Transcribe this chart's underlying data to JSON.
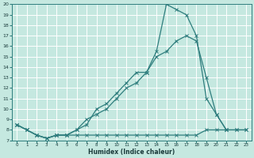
{
  "xlabel": "Humidex (Indice chaleur)",
  "bg_color": "#c5e8e0",
  "grid_color": "#ffffff",
  "line_color": "#2e7d7d",
  "xlim": [
    -0.5,
    23.5
  ],
  "ylim": [
    7,
    20
  ],
  "xticks": [
    0,
    1,
    2,
    3,
    4,
    5,
    6,
    7,
    8,
    9,
    10,
    11,
    12,
    13,
    14,
    15,
    16,
    17,
    18,
    19,
    20,
    21,
    22,
    23
  ],
  "yticks": [
    7,
    8,
    9,
    10,
    11,
    12,
    13,
    14,
    15,
    16,
    17,
    18,
    19,
    20
  ],
  "line1_x": [
    0,
    1,
    2,
    3,
    4,
    5,
    6,
    7,
    8,
    9,
    10,
    11,
    12,
    13,
    14,
    15,
    16,
    17,
    18,
    19,
    20,
    21
  ],
  "line1_y": [
    8.5,
    8.0,
    7.5,
    7.2,
    7.5,
    7.5,
    8.0,
    8.5,
    10.0,
    10.5,
    11.5,
    12.5,
    13.5,
    13.5,
    15.5,
    20.0,
    19.5,
    19.0,
    17.0,
    11.0,
    9.5,
    8.0
  ],
  "line2_x": [
    0,
    1,
    2,
    3,
    4,
    5,
    6,
    7,
    8,
    9,
    10,
    11,
    12,
    13,
    14,
    15,
    16,
    17,
    18,
    19,
    20,
    21,
    22,
    23
  ],
  "line2_y": [
    8.5,
    8.0,
    7.5,
    7.2,
    7.5,
    7.5,
    8.0,
    9.0,
    9.5,
    10.0,
    11.0,
    12.0,
    12.5,
    13.5,
    15.0,
    15.5,
    16.5,
    17.0,
    16.5,
    13.0,
    9.5,
    8.0,
    8.0,
    8.0
  ],
  "line3_x": [
    0,
    1,
    2,
    3,
    4,
    5,
    6,
    7,
    8,
    9,
    10,
    11,
    12,
    13,
    14,
    15,
    16,
    17,
    18,
    19,
    20,
    21,
    22,
    23
  ],
  "line3_y": [
    8.5,
    8.0,
    7.5,
    7.2,
    7.5,
    7.5,
    7.5,
    7.5,
    7.5,
    7.5,
    7.5,
    7.5,
    7.5,
    7.5,
    7.5,
    7.5,
    7.5,
    7.5,
    7.5,
    8.0,
    8.0,
    8.0,
    8.0,
    8.0
  ]
}
